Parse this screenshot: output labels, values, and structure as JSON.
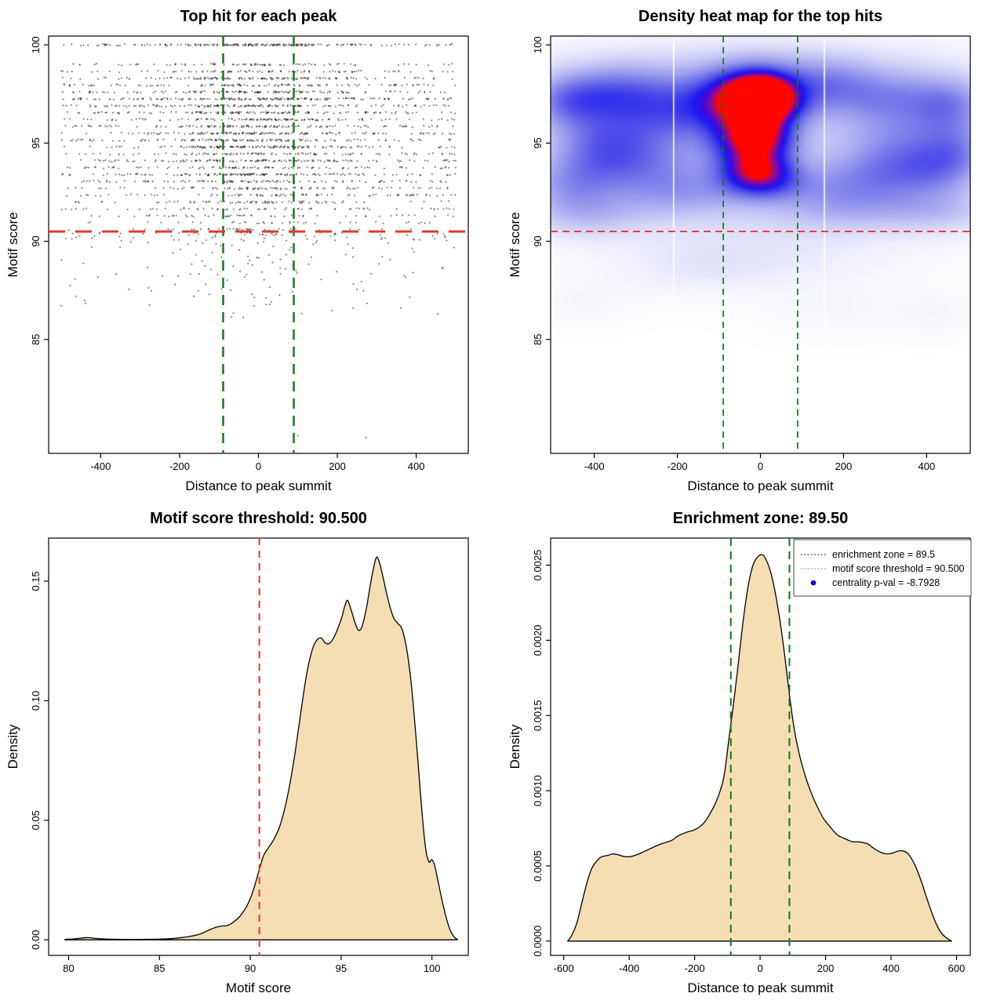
{
  "chart_data": [
    {
      "id": "top-hit-scatter",
      "type": "scatter",
      "title": "Top hit for each peak",
      "xlabel": "Distance to peak summit",
      "ylabel": "Motif score",
      "xlim": [
        -532,
        532
      ],
      "ylim": [
        79.2,
        100.45
      ],
      "xticks": {
        "values": [
          -400,
          -200,
          0,
          200,
          400
        ],
        "labels": [
          "-400",
          "-200",
          "0",
          "200",
          "400"
        ]
      },
      "yticks": {
        "values": [
          85,
          90,
          95,
          100
        ],
        "labels": [
          "85",
          "90",
          "95",
          "100"
        ]
      },
      "point_color": "#000000",
      "threshold_line": {
        "y": 90.5,
        "color": "#e23930",
        "dash": [
          21,
          13
        ],
        "width": 3
      },
      "zone_lines": {
        "x": [
          -89.5,
          89.5
        ],
        "color": "#107516",
        "dash": [
          13,
          9
        ],
        "width": 2.4
      },
      "points": {
        "seed": 1234,
        "n_band_points": 2950,
        "x_uniform_frac": 0.56,
        "x_range": [
          -500,
          500
        ],
        "x_center_sigma": 115,
        "y_jitter": 0.045,
        "bands": [
          [
            100.0,
            68
          ],
          [
            99.0,
            25
          ],
          [
            98.65,
            30
          ],
          [
            98.3,
            46
          ],
          [
            97.95,
            38
          ],
          [
            97.6,
            47
          ],
          [
            97.25,
            56
          ],
          [
            96.9,
            51
          ],
          [
            96.55,
            47
          ],
          [
            96.2,
            43
          ],
          [
            95.85,
            46
          ],
          [
            95.5,
            53
          ],
          [
            95.15,
            46
          ],
          [
            94.8,
            41
          ],
          [
            94.45,
            39
          ],
          [
            94.1,
            47
          ],
          [
            93.75,
            41
          ],
          [
            93.4,
            44
          ],
          [
            93.05,
            37
          ],
          [
            92.7,
            41
          ],
          [
            92.35,
            29
          ],
          [
            92.0,
            26
          ],
          [
            91.65,
            21
          ],
          [
            91.3,
            17
          ],
          [
            90.95,
            13
          ],
          [
            90.6,
            10
          ]
        ],
        "tail": {
          "n": 155,
          "y_top": 90.45,
          "y_span": 2.3,
          "pow": 1.8
        },
        "low": {
          "n": 42,
          "y_top": 88.1,
          "y_span": 2.1,
          "pow": 1.3
        },
        "outliers": [
          [
            100,
            80.1
          ],
          [
            273,
            80.0
          ],
          [
            455,
            86.3
          ],
          [
            -462,
            87.2
          ]
        ]
      }
    },
    {
      "id": "density-heatmap",
      "type": "heatmap",
      "title": "Density heat map for the top hits",
      "xlabel": "Distance to peak summit",
      "ylabel": "Motif score",
      "xlim": [
        -505,
        505
      ],
      "ylim": [
        79.2,
        100.45
      ],
      "xticks": {
        "values": [
          -400,
          -200,
          0,
          200,
          400
        ],
        "labels": [
          "-400",
          "-200",
          "0",
          "200",
          "400"
        ]
      },
      "yticks": {
        "values": [
          85,
          90,
          95,
          100
        ],
        "labels": [
          "85",
          "90",
          "95",
          "100"
        ]
      },
      "threshold_line": {
        "y": 90.5,
        "color": "#ee2c24",
        "dash": [
          9,
          6
        ],
        "width": 1.7
      },
      "zone_lines": {
        "x": [
          -89.5,
          89.5
        ],
        "color": "#107516",
        "dash": [
          8,
          6
        ],
        "width": 1.7
      },
      "white_gaps": [
        -209,
        154
      ],
      "colormap": [
        [
          0,
          "#ffffff"
        ],
        [
          0.07,
          "#f4f4fd"
        ],
        [
          0.16,
          "#dedefa"
        ],
        [
          0.28,
          "#bcbcf4"
        ],
        [
          0.4,
          "#9898ee"
        ],
        [
          0.52,
          "#6e6ee9"
        ],
        [
          0.63,
          "#4343ea"
        ],
        [
          0.72,
          "#1b1bf2"
        ],
        [
          0.8,
          "#4409d8"
        ],
        [
          0.87,
          "#7a0cab"
        ],
        [
          0.92,
          "#a50b78"
        ],
        [
          0.96,
          "#d50837"
        ],
        [
          1,
          "#ff0500"
        ]
      ],
      "blobs": [
        [
          0,
          97.25,
          52,
          0.78,
          0.92
        ],
        [
          -12,
          97.95,
          85,
          0.95,
          0.28
        ],
        [
          35,
          96.95,
          72,
          0.85,
          0.24
        ],
        [
          0,
          96.3,
          65,
          1.5,
          0.22
        ],
        [
          0,
          95.35,
          52,
          0.68,
          0.46
        ],
        [
          -5,
          93.62,
          56,
          0.78,
          0.5
        ],
        [
          0,
          94.55,
          68,
          1.2,
          0.22
        ],
        [
          -70,
          95.3,
          55,
          1.2,
          0.24
        ],
        [
          -85,
          97.3,
          60,
          1.0,
          0.2
        ],
        [
          25,
          92.95,
          90,
          0.7,
          0.22
        ],
        [
          -350,
          97.6,
          95,
          1.0,
          0.32
        ],
        [
          -470,
          97.1,
          70,
          0.95,
          0.3
        ],
        [
          -390,
          95.1,
          85,
          1.15,
          0.3
        ],
        [
          -255,
          96.3,
          90,
          1.3,
          0.27
        ],
        [
          -300,
          93.9,
          115,
          1.0,
          0.25
        ],
        [
          -460,
          92.9,
          85,
          1.0,
          0.25
        ],
        [
          -200,
          92.5,
          100,
          0.9,
          0.2
        ],
        [
          -420,
          91.3,
          95,
          0.85,
          0.16
        ],
        [
          -150,
          96.8,
          70,
          1.1,
          0.22
        ],
        [
          300,
          97.3,
          115,
          1.0,
          0.28
        ],
        [
          465,
          96.9,
          70,
          1.0,
          0.27
        ],
        [
          350,
          94.9,
          105,
          1.2,
          0.28
        ],
        [
          255,
          93.2,
          100,
          0.95,
          0.24
        ],
        [
          425,
          93.5,
          85,
          0.95,
          0.24
        ],
        [
          480,
          94.7,
          60,
          1.0,
          0.2
        ],
        [
          210,
          91.7,
          120,
          0.85,
          0.16
        ],
        [
          435,
          91.5,
          95,
          0.8,
          0.15
        ],
        [
          160,
          98.2,
          80,
          0.9,
          0.18
        ],
        [
          0,
          95.6,
          400,
          2.9,
          0.15
        ],
        [
          0,
          98.7,
          420,
          1.25,
          0.11
        ],
        [
          0,
          91.6,
          450,
          1.1,
          0.1
        ],
        [
          0,
          89.2,
          260,
          1.1,
          0.09
        ],
        [
          -150,
          88.5,
          130,
          1.0,
          0.06
        ],
        [
          -430,
          86.9,
          90,
          0.9,
          0.05
        ],
        [
          180,
          86.5,
          130,
          1.0,
          0.05
        ],
        [
          430,
          86.3,
          75,
          0.85,
          0.05
        ]
      ]
    },
    {
      "id": "motif-score-density",
      "type": "area",
      "title": "Motif score threshold: 90.500",
      "xlabel": "Motif score",
      "ylabel": "Density",
      "xlim": [
        78.9,
        102.0
      ],
      "ylim": [
        -0.0065,
        0.168
      ],
      "xticks": {
        "values": [
          80,
          85,
          90,
          95,
          100
        ],
        "labels": [
          "80",
          "85",
          "90",
          "95",
          "100"
        ]
      },
      "yticks": {
        "values": [
          0,
          0.05,
          0.1,
          0.15
        ],
        "labels": [
          "0.00",
          "0.05",
          "0.10",
          "0.15"
        ]
      },
      "fill": "#f5deb3",
      "stroke": "#000000",
      "threshold_line": {
        "x": 90.5,
        "color": "#e23930",
        "dash": [
          9,
          7
        ],
        "width": 2
      },
      "curve": [
        [
          79.8,
          0.0002
        ],
        [
          80.3,
          0.0004
        ],
        [
          80.8,
          0.0008
        ],
        [
          81.1,
          0.0009
        ],
        [
          81.5,
          0.0006
        ],
        [
          82.2,
          0.0003
        ],
        [
          83,
          0.0002
        ],
        [
          84,
          0.0002
        ],
        [
          85,
          0.0003
        ],
        [
          85.8,
          0.0006
        ],
        [
          86.3,
          0.001
        ],
        [
          86.8,
          0.0016
        ],
        [
          87.3,
          0.0026
        ],
        [
          87.7,
          0.004
        ],
        [
          88.1,
          0.0052
        ],
        [
          88.45,
          0.0058
        ],
        [
          88.75,
          0.006
        ],
        [
          89.1,
          0.0075
        ],
        [
          89.5,
          0.0105
        ],
        [
          89.9,
          0.0155
        ],
        [
          90.2,
          0.0215
        ],
        [
          90.5,
          0.0295
        ],
        [
          90.75,
          0.0355
        ],
        [
          91.0,
          0.0385
        ],
        [
          91.3,
          0.042
        ],
        [
          91.6,
          0.047
        ],
        [
          91.9,
          0.055
        ],
        [
          92.2,
          0.066
        ],
        [
          92.5,
          0.08
        ],
        [
          92.8,
          0.096
        ],
        [
          93.1,
          0.111
        ],
        [
          93.4,
          0.121
        ],
        [
          93.65,
          0.1252
        ],
        [
          93.9,
          0.1262
        ],
        [
          94.15,
          0.124
        ],
        [
          94.4,
          0.1242
        ],
        [
          94.7,
          0.128
        ],
        [
          95.0,
          0.134
        ],
        [
          95.2,
          0.1395
        ],
        [
          95.35,
          0.142
        ],
        [
          95.55,
          0.138
        ],
        [
          95.75,
          0.133
        ],
        [
          95.95,
          0.1295
        ],
        [
          96.15,
          0.131
        ],
        [
          96.4,
          0.139
        ],
        [
          96.6,
          0.148
        ],
        [
          96.8,
          0.156
        ],
        [
          96.95,
          0.16
        ],
        [
          97.1,
          0.158
        ],
        [
          97.3,
          0.152
        ],
        [
          97.5,
          0.145
        ],
        [
          97.7,
          0.139
        ],
        [
          97.9,
          0.1345
        ],
        [
          98.1,
          0.1325
        ],
        [
          98.35,
          0.13
        ],
        [
          98.6,
          0.122
        ],
        [
          98.85,
          0.108
        ],
        [
          99.1,
          0.087
        ],
        [
          99.35,
          0.063
        ],
        [
          99.55,
          0.045
        ],
        [
          99.7,
          0.036
        ],
        [
          99.85,
          0.0325
        ],
        [
          100.0,
          0.0335
        ],
        [
          100.15,
          0.031
        ],
        [
          100.35,
          0.024
        ],
        [
          100.6,
          0.015
        ],
        [
          100.85,
          0.0075
        ],
        [
          101.05,
          0.0032
        ],
        [
          101.25,
          0.001
        ],
        [
          101.4,
          0.0002
        ]
      ]
    },
    {
      "id": "distance-density",
      "type": "area",
      "title": "Enrichment zone: 89.50",
      "xlabel": "Distance to peak summit",
      "ylabel": "Density",
      "xlim": [
        -640,
        642
      ],
      "ylim": [
        -9.5e-05,
        0.00268
      ],
      "xticks": {
        "values": [
          -600,
          -400,
          -200,
          0,
          200,
          400,
          600
        ],
        "labels": [
          "-600",
          "-400",
          "-200",
          "0",
          "200",
          "400",
          "600"
        ]
      },
      "yticks": {
        "values": [
          0,
          0.0005,
          0.001,
          0.0015,
          0.002,
          0.0025
        ],
        "labels": [
          "0.0000",
          "0.0005",
          "0.0010",
          "0.0015",
          "0.0020",
          "0.0025"
        ]
      },
      "fill": "#f5deb3",
      "stroke": "#000000",
      "zone_lines": {
        "x": [
          -89.5,
          89.5
        ],
        "color": "#107516",
        "dash": [
          10,
          7
        ],
        "width": 2
      },
      "curve": [
        [
          -588,
          0
        ],
        [
          -575,
          4e-05
        ],
        [
          -560,
          0.00012
        ],
        [
          -545,
          0.00025
        ],
        [
          -530,
          0.00038
        ],
        [
          -515,
          0.00048
        ],
        [
          -500,
          0.00053
        ],
        [
          -485,
          0.00056
        ],
        [
          -465,
          0.00057
        ],
        [
          -450,
          0.00058
        ],
        [
          -435,
          0.000575
        ],
        [
          -420,
          0.000565
        ],
        [
          -405,
          0.00056
        ],
        [
          -390,
          0.000565
        ],
        [
          -370,
          0.00058
        ],
        [
          -350,
          0.0006
        ],
        [
          -330,
          0.00062
        ],
        [
          -310,
          0.00064
        ],
        [
          -290,
          0.000655
        ],
        [
          -270,
          0.00067
        ],
        [
          -250,
          0.0007
        ],
        [
          -230,
          0.00072
        ],
        [
          -215,
          0.00073
        ],
        [
          -200,
          0.00074
        ],
        [
          -185,
          0.00076
        ],
        [
          -170,
          0.00079
        ],
        [
          -155,
          0.00084
        ],
        [
          -140,
          0.0009
        ],
        [
          -125,
          0.00098
        ],
        [
          -110,
          0.0011
        ],
        [
          -95,
          0.00135
        ],
        [
          -80,
          0.0016
        ],
        [
          -65,
          0.00188
        ],
        [
          -50,
          0.00216
        ],
        [
          -35,
          0.00238
        ],
        [
          -20,
          0.00251
        ],
        [
          -5,
          0.00256
        ],
        [
          5,
          0.00257
        ],
        [
          15,
          0.00255
        ],
        [
          30,
          0.00247
        ],
        [
          45,
          0.00233
        ],
        [
          60,
          0.00214
        ],
        [
          75,
          0.0019
        ],
        [
          90,
          0.00163
        ],
        [
          105,
          0.0014
        ],
        [
          120,
          0.00124
        ],
        [
          135,
          0.00112
        ],
        [
          150,
          0.00102
        ],
        [
          165,
          0.00094
        ],
        [
          180,
          0.00087
        ],
        [
          195,
          0.00081
        ],
        [
          210,
          0.00077
        ],
        [
          225,
          0.00073
        ],
        [
          240,
          0.0007
        ],
        [
          255,
          0.000685
        ],
        [
          270,
          0.00067
        ],
        [
          285,
          0.00066
        ],
        [
          300,
          0.00066
        ],
        [
          315,
          0.000655
        ],
        [
          330,
          0.000645
        ],
        [
          345,
          0.00062
        ],
        [
          360,
          0.0006
        ],
        [
          375,
          0.000585
        ],
        [
          390,
          0.00058
        ],
        [
          405,
          0.000585
        ],
        [
          420,
          0.000598
        ],
        [
          435,
          0.0006
        ],
        [
          450,
          0.000585
        ],
        [
          465,
          0.00054
        ],
        [
          480,
          0.00047
        ],
        [
          495,
          0.00038
        ],
        [
          510,
          0.00028
        ],
        [
          525,
          0.000185
        ],
        [
          540,
          0.000105
        ],
        [
          555,
          5e-05
        ],
        [
          570,
          2e-05
        ],
        [
          585,
          0
        ]
      ],
      "legend": {
        "items": [
          {
            "swatch": "dotted-line",
            "color": "#1e6e28",
            "label": "enrichment zone = 89.5"
          },
          {
            "swatch": "dotted-line",
            "color": "#ef8a80",
            "label": "motif score threshold = 90.500"
          },
          {
            "swatch": "dot",
            "color": "#0000ee",
            "label": "centrality p-val = -8.7928"
          }
        ]
      }
    }
  ]
}
